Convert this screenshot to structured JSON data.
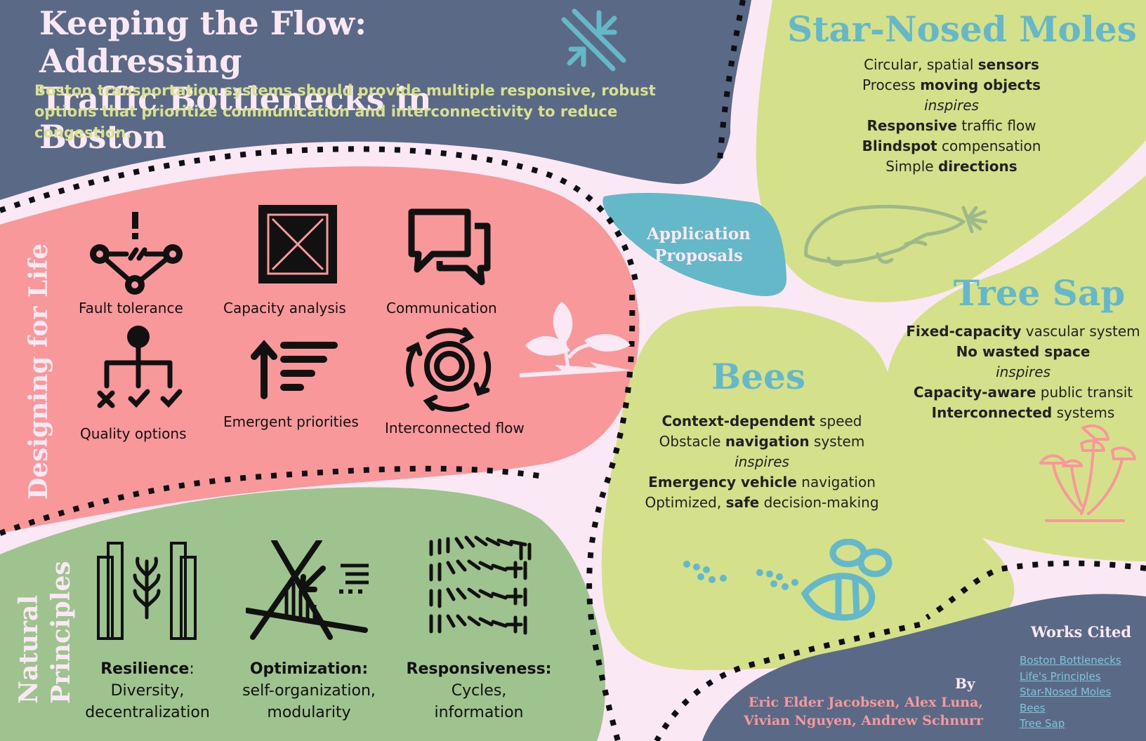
{
  "header": {
    "title_line1": "Keeping the Flow: Addressing",
    "title_line2": "Traffic Bottlenecks in Boston",
    "subtitle": "Boston transportation systems should provide multiple responsive, robust options that prioritize communication and interconnectivity to reduce congestion.",
    "icon": "converging-arrows-icon"
  },
  "designing_for_life": {
    "label": "Designing for Life",
    "items": [
      {
        "label": "Fault tolerance",
        "icon": "fault-network-icon"
      },
      {
        "label": "Capacity analysis",
        "icon": "capacity-box-icon"
      },
      {
        "label": "Communication",
        "icon": "chat-bubbles-icon"
      },
      {
        "label": "Quality options",
        "icon": "decision-tree-icon"
      },
      {
        "label": "Emergent priorities",
        "icon": "priority-sort-icon"
      },
      {
        "label": "Interconnected flow",
        "icon": "circular-flow-icon"
      }
    ],
    "decoration": "sprout-icon"
  },
  "natural_principles": {
    "label_line1": "Natural",
    "label_line2": "Principles",
    "items": [
      {
        "title": "Resilience",
        "suffix": ":",
        "line1": "Diversity,",
        "line2": "decentralization",
        "icon": "resilience-icon"
      },
      {
        "title": "Optimization:",
        "suffix": "",
        "line1": "self-organization,",
        "line2": "modularity",
        "icon": "optimization-icon"
      },
      {
        "title": "Responsiveness:",
        "suffix": "",
        "line1": "Cycles,",
        "line2": "information",
        "icon": "responsiveness-icon"
      }
    ]
  },
  "application_proposals": {
    "line1": "Application",
    "line2": "Proposals"
  },
  "star_nosed_moles": {
    "title": "Star-Nosed Moles",
    "lines": [
      {
        "pre": "Circular, spatial ",
        "bold": "sensors",
        "post": ""
      },
      {
        "pre": "Process ",
        "bold": "moving objects",
        "post": ""
      },
      {
        "italic": "inspires"
      },
      {
        "pre": "",
        "bold": "Responsive",
        "post": " traffic flow"
      },
      {
        "pre": "",
        "bold": "Blindspot",
        "post": " compensation"
      },
      {
        "pre": "Simple ",
        "bold": "directions",
        "post": ""
      }
    ],
    "icon": "mole-icon"
  },
  "tree_sap": {
    "title": "Tree Sap",
    "lines": [
      {
        "pre": "",
        "bold": "Fixed-capacity",
        "post": " vascular system"
      },
      {
        "pre": "",
        "bold": "No wasted space",
        "post": ""
      },
      {
        "italic": "inspires"
      },
      {
        "pre": "",
        "bold": "Capacity-aware",
        "post": " public transit"
      },
      {
        "pre": "",
        "bold": "Interconnected",
        "post": " systems"
      }
    ],
    "icon": "mushroom-icon"
  },
  "bees": {
    "title": "Bees",
    "lines": [
      {
        "pre": "",
        "bold": "Context-dependent",
        "post": " speed"
      },
      {
        "pre": "Obstacle ",
        "bold": "navigation",
        "post": " system"
      },
      {
        "italic": "inspires"
      },
      {
        "pre": "",
        "bold": "Emergency vehicle",
        "post": " navigation"
      },
      {
        "pre": "Optimized, ",
        "bold": "safe",
        "post": " decision-making"
      }
    ],
    "icon": "bee-icon"
  },
  "authors": {
    "by": "By",
    "line1": "Eric Elder Jacobsen, Alex Luna,",
    "line2": "Vivian Nguyen, Andrew Schnurr"
  },
  "works_cited": {
    "title": "Works Cited",
    "links": [
      "Boston Bottlenecks",
      "Life's Principles",
      "Star-Nosed Moles",
      "Bees",
      "Tree Sap"
    ]
  },
  "colors": {
    "background": "#fbe8f5",
    "header": "#5a6985",
    "coral": "#f8989a",
    "sage": "#9ec38e",
    "lime": "#d4e08a",
    "teal": "#65b8c8",
    "author_pink": "#f8989a"
  }
}
